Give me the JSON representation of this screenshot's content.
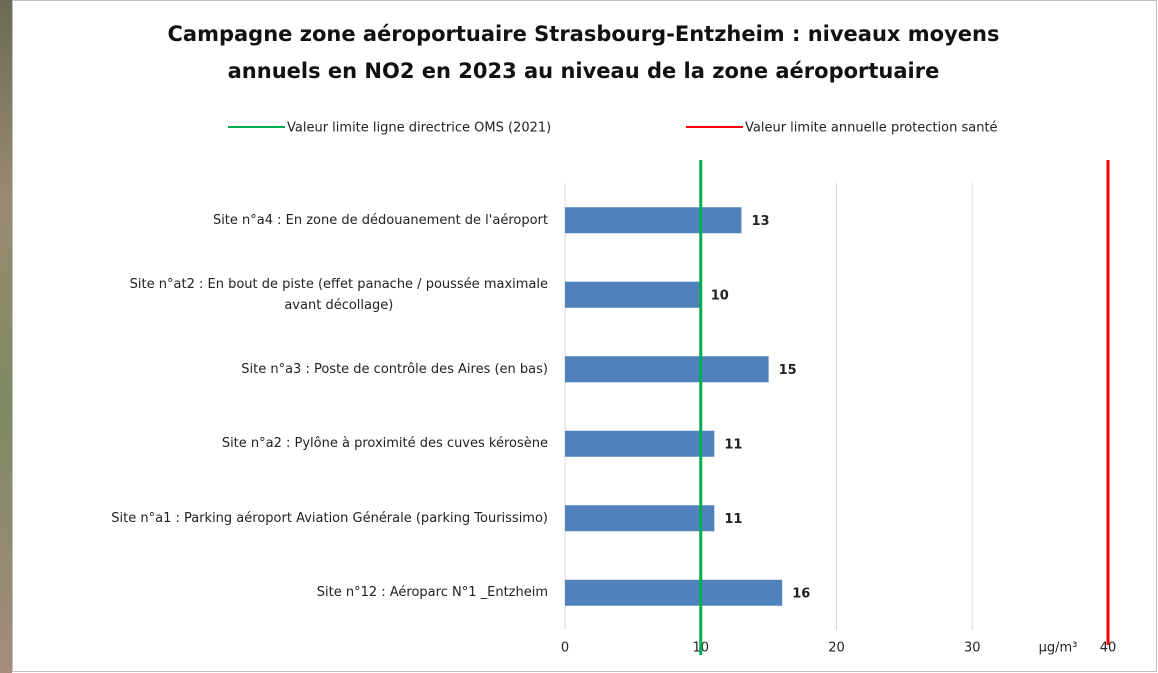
{
  "chart_data": {
    "type": "bar",
    "orientation": "horizontal",
    "title": "Campagne zone aéroportuaire Strasbourg-Entzheim : niveaux moyens\nannuels en NO2 en 2023 au niveau de la zone aéroportuaire",
    "categories": [
      "Site n°a4 : En zone de dédouanement de l'aéroport",
      "Site n°at2 : En bout de piste (effet panache / poussée maximale\navant décollage)",
      "Site n°a3 : Poste de contrôle des Aires (en bas)",
      "Site n°a2 : Pylône à proximité des cuves kérosène",
      "Site n°a1 : Parking aéroport Aviation Générale (parking Tourissimo)",
      "Site n°12 : Aéroparc N°1 _Entzheim"
    ],
    "values": [
      13,
      10,
      15,
      11,
      11,
      16
    ],
    "color": "#4f81bd",
    "xlim": [
      0,
      40
    ],
    "xticks": [
      0,
      10,
      20,
      30,
      40
    ],
    "grid": true,
    "unit": "µg/m³",
    "reference_lines": [
      {
        "name": "Valeur limite ligne directrice OMS (2021)",
        "value": 10,
        "color": "#00b050"
      },
      {
        "name": "Valeur limite annuelle protection  santé",
        "value": 40,
        "color": "#ff0000"
      }
    ]
  }
}
